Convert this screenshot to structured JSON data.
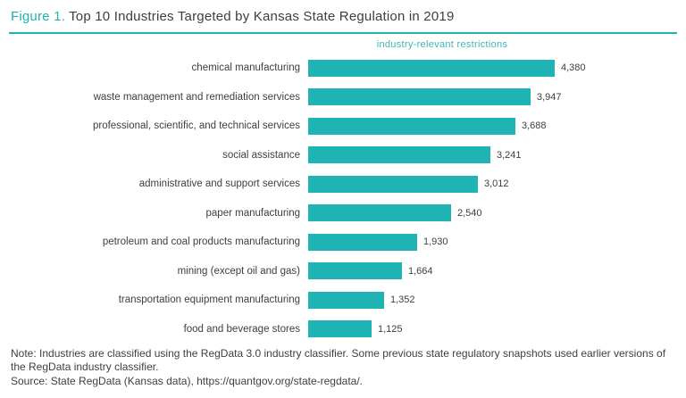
{
  "figure": {
    "label": "Figure 1.",
    "title": "Top 10 Industries Targeted by Kansas State Regulation in 2019"
  },
  "colors": {
    "accent": "#1fb3b3",
    "bar": "#1fb3b3",
    "title_text": "#3e3e3e"
  },
  "chart_data": {
    "type": "bar",
    "orientation": "horizontal",
    "title": "Top 10 Industries Targeted by Kansas State Regulation in 2019",
    "column_header": "industry-relevant restrictions",
    "categories": [
      "chemical manufacturing",
      "waste management and remediation services",
      "professional, scientific, and technical services",
      "social assistance",
      "administrative and support services",
      "paper manufacturing",
      "petroleum and coal products manufacturing",
      "mining (except oil and gas)",
      "transportation equipment manufacturing",
      "food and beverage stores"
    ],
    "values": [
      4380,
      3947,
      3688,
      3241,
      3012,
      2540,
      1930,
      1664,
      1352,
      1125
    ],
    "value_labels": [
      "4,380",
      "3,947",
      "3,688",
      "3,241",
      "3,012",
      "2,540",
      "1,930",
      "1,664",
      "1,352",
      "1,125"
    ],
    "xlim": [
      0,
      4600
    ],
    "grid": false,
    "legend": false,
    "bar_color": "#1fb3b3"
  },
  "notes": {
    "note": "Note: Industries are classified using the RegData 3.0 industry classifier. Some previous state regulatory snapshots used earlier versions of the RegData industry classifier.",
    "source": "Source: State RegData (Kansas data), https://quantgov.org/state-regdata/."
  }
}
